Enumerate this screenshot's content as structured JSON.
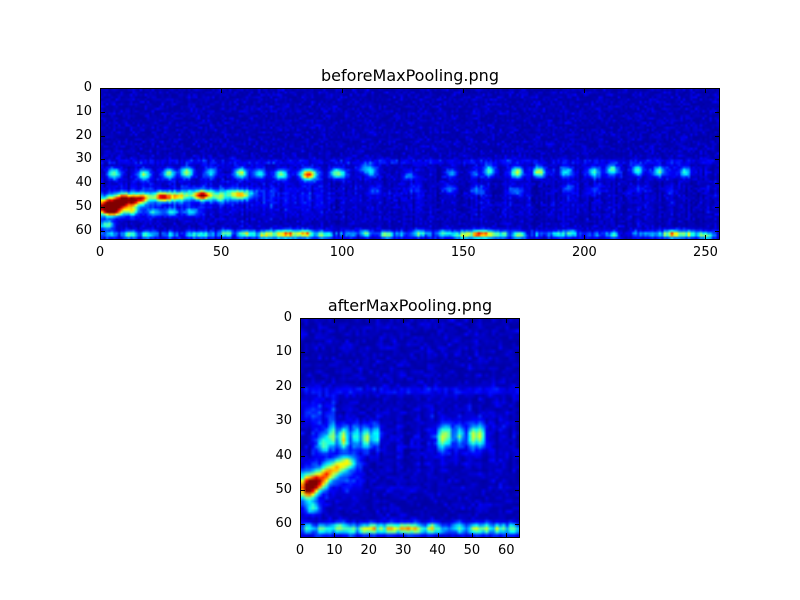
{
  "figure": {
    "background_color": "#ffffff",
    "frame_color": "#000000"
  },
  "chart_data": [
    {
      "type": "heatmap",
      "title": "beforeMaxPooling.png",
      "xlim": [
        0,
        256
      ],
      "ylim": [
        64,
        0
      ],
      "y_axis_inverted": true,
      "x_extent": 256,
      "y_extent": 64,
      "x_tick_labels": [
        0,
        50,
        100,
        150,
        200,
        250
      ],
      "y_tick_labels": [
        0,
        10,
        20,
        30,
        40,
        50,
        60
      ],
      "colormap": "jet",
      "value_range": [
        0,
        1
      ],
      "grid": [
        256,
        64
      ],
      "seed": 11,
      "background": 0.035,
      "noise": 0.1,
      "bands": [
        {
          "y": 30.5,
          "sy": 0.7,
          "x0": 0,
          "x1": 256,
          "v": 0.11,
          "speckle": 0.9
        },
        {
          "y": 45,
          "sy": 9,
          "x0": 0,
          "x1": 256,
          "v": 0.05,
          "speckle": 1.4
        },
        {
          "y": 46,
          "sy": 4.5,
          "x0": 0,
          "x1": 95,
          "v": 0.09,
          "speckle": 1.0
        },
        {
          "y": 61.5,
          "sy": 1.0,
          "x0": 0,
          "x1": 256,
          "v": 0.2,
          "speckle": 1.2
        },
        {
          "y": 35,
          "sy": 1.8,
          "x0": 160,
          "x1": 250,
          "v": 0.08,
          "speckle": 1.2
        }
      ],
      "pulse_rows": [
        {
          "y": 35.5,
          "sy": 1.5,
          "sx": 1.8,
          "x0": 6,
          "x1": 96,
          "period": 10,
          "v_min": 0.22,
          "v_max": 0.55
        },
        {
          "y": 34.5,
          "sy": 1.5,
          "sx": 1.6,
          "x0": 162,
          "x1": 250,
          "period": 10,
          "v_min": 0.28,
          "v_max": 0.6
        },
        {
          "y": 36,
          "sy": 1.3,
          "sx": 1.5,
          "x0": 100,
          "x1": 158,
          "period": 14,
          "v_min": 0.1,
          "v_max": 0.28
        },
        {
          "y": 45.5,
          "sy": 1.3,
          "sx": 2.2,
          "x0": 8,
          "x1": 60,
          "period": 8,
          "v_min": 0.28,
          "v_max": 0.55
        },
        {
          "y": 52,
          "sy": 1.2,
          "sx": 2.0,
          "x0": 5,
          "x1": 42,
          "period": 8,
          "v_min": 0.18,
          "v_max": 0.45
        },
        {
          "y": 61.5,
          "sy": 1.0,
          "sx": 2.0,
          "x0": 4,
          "x1": 252,
          "period": 8,
          "v_min": 0.08,
          "v_max": 0.4
        },
        {
          "y": 42.5,
          "sy": 1.2,
          "sx": 1.8,
          "x0": 110,
          "x1": 250,
          "period": 16,
          "v_min": 0.06,
          "v_max": 0.2
        }
      ],
      "blobs": [
        {
          "x": 6,
          "y": 48.5,
          "sx": 4.5,
          "sy": 2.2,
          "v": 0.95
        },
        {
          "x": 2,
          "y": 50.5,
          "sx": 2.5,
          "sy": 2.0,
          "v": 0.85
        },
        {
          "x": 13,
          "y": 47,
          "sx": 3,
          "sy": 1.6,
          "v": 0.55
        },
        {
          "x": 26,
          "y": 45.5,
          "sx": 4,
          "sy": 1.5,
          "v": 0.45
        },
        {
          "x": 41,
          "y": 44.5,
          "sx": 5,
          "sy": 1.4,
          "v": 0.4
        },
        {
          "x": 56,
          "y": 44,
          "sx": 5,
          "sy": 1.3,
          "v": 0.35
        },
        {
          "x": 2,
          "y": 57.5,
          "sx": 2,
          "sy": 1.3,
          "v": 0.4
        },
        {
          "x": 75,
          "y": 61.5,
          "sx": 8,
          "sy": 1.2,
          "v": 0.45
        },
        {
          "x": 157,
          "y": 61.5,
          "sx": 6,
          "sy": 1.2,
          "v": 0.5
        },
        {
          "x": 240,
          "y": 61.5,
          "sx": 6,
          "sy": 1.1,
          "v": 0.35
        },
        {
          "x": 86,
          "y": 36,
          "sx": 2.2,
          "sy": 1.6,
          "v": 0.55
        },
        {
          "x": 110,
          "y": 33.5,
          "sx": 2.5,
          "sy": 1.4,
          "v": 0.25
        }
      ]
    },
    {
      "type": "heatmap",
      "title": "afterMaxPooling.png",
      "xlim": [
        0,
        64
      ],
      "ylim": [
        64,
        0
      ],
      "y_axis_inverted": true,
      "x_extent": 64,
      "y_extent": 64,
      "x_tick_labels": [
        0,
        10,
        20,
        30,
        40,
        50,
        60
      ],
      "y_tick_labels": [
        0,
        10,
        20,
        30,
        40,
        50,
        60
      ],
      "colormap": "jet",
      "value_range": [
        0,
        1
      ],
      "grid": [
        64,
        64
      ],
      "seed": 42,
      "background": 0.035,
      "noise": 0.1,
      "bands": [
        {
          "y": 20.5,
          "sy": 0.8,
          "x0": 0,
          "x1": 64,
          "v": 0.1,
          "speckle": 0.8
        },
        {
          "y": 35,
          "sy": 8,
          "x0": 0,
          "x1": 64,
          "v": 0.05,
          "speckle": 1.4
        },
        {
          "y": 27,
          "sy": 3,
          "x0": 0,
          "x1": 9,
          "v": 0.12,
          "speckle": 0.8
        },
        {
          "y": 61,
          "sy": 1.1,
          "x0": 0,
          "x1": 64,
          "v": 0.28,
          "speckle": 0.9
        },
        {
          "y": 46,
          "sy": 4,
          "x0": 0,
          "x1": 18,
          "v": 0.1,
          "speckle": 0.8
        }
      ],
      "pulse_rows": [
        {
          "y": 34,
          "sy": 2.3,
          "sx": 0.9,
          "x0": 9,
          "x1": 24,
          "period": 3.2,
          "v_min": 0.3,
          "v_max": 0.6
        },
        {
          "y": 34,
          "sy": 2.3,
          "sx": 0.9,
          "x0": 40,
          "x1": 56,
          "period": 3.2,
          "v_min": 0.3,
          "v_max": 0.6
        },
        {
          "y": 61,
          "sy": 1.0,
          "sx": 1.3,
          "x0": 2,
          "x1": 62,
          "period": 4,
          "v_min": 0.12,
          "v_max": 0.42
        }
      ],
      "blobs": [
        {
          "x": 1.5,
          "y": 49,
          "sx": 1.8,
          "sy": 2.3,
          "v": 0.95
        },
        {
          "x": 4.5,
          "y": 47.5,
          "sx": 1.8,
          "sy": 1.6,
          "v": 0.65
        },
        {
          "x": 7,
          "y": 45,
          "sx": 2,
          "sy": 1.5,
          "v": 0.55
        },
        {
          "x": 10,
          "y": 43,
          "sx": 2,
          "sy": 1.4,
          "v": 0.45
        },
        {
          "x": 13,
          "y": 41.5,
          "sx": 2,
          "sy": 1.3,
          "v": 0.4
        },
        {
          "x": 3,
          "y": 55,
          "sx": 1.5,
          "sy": 1.2,
          "v": 0.35
        },
        {
          "x": 6,
          "y": 36,
          "sx": 1.2,
          "sy": 2,
          "v": 0.4
        },
        {
          "x": 30,
          "y": 61,
          "sx": 3,
          "sy": 1.0,
          "v": 0.4
        }
      ]
    }
  ]
}
